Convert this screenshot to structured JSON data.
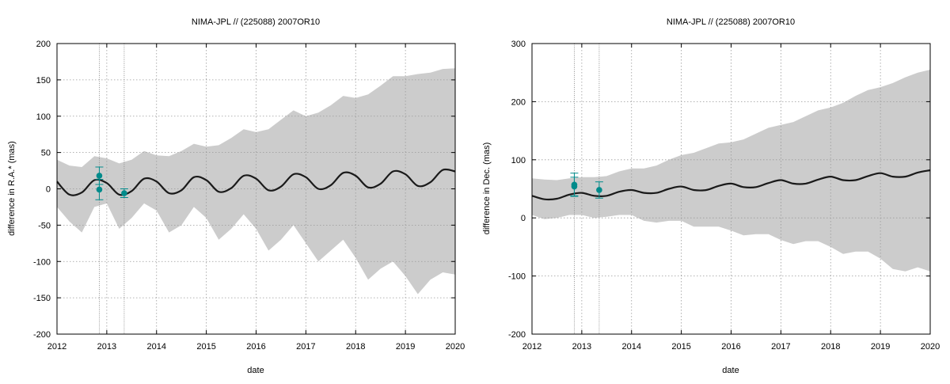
{
  "chart_data": [
    {
      "type": "line",
      "title": "NIMA-JPL // (225088) 2007OR10",
      "xlabel": "date",
      "ylabel": "difference in R.A.* (mas)",
      "xlim": [
        2012,
        2020
      ],
      "ylim": [
        -200,
        200
      ],
      "xticks": [
        "2012",
        "2013",
        "2014",
        "2015",
        "2016",
        "2017",
        "2018",
        "2019",
        "2020"
      ],
      "yticks": [
        "-200",
        "-150",
        "-100",
        "-50",
        "0",
        "50",
        "100",
        "150",
        "200"
      ],
      "grid": "dotted",
      "vertical_markers": [
        2012.85,
        2013.35
      ],
      "prediction_curve": {
        "description": "mean difference, oscillating with ~1 yr period",
        "x": [
          2012.0,
          2012.25,
          2012.5,
          2012.75,
          2013.0,
          2013.25,
          2013.5,
          2013.75,
          2014.0,
          2014.25,
          2014.5,
          2014.75,
          2015.0,
          2015.25,
          2015.5,
          2015.75,
          2016.0,
          2016.25,
          2016.5,
          2016.75,
          2017.0,
          2017.25,
          2017.5,
          2017.75,
          2018.0,
          2018.25,
          2018.5,
          2018.75,
          2019.0,
          2019.25,
          2019.5,
          2019.75,
          2020.0
        ],
        "y": [
          10,
          -8,
          -5,
          12,
          8,
          -8,
          -3,
          14,
          10,
          -6,
          -2,
          16,
          12,
          -4,
          1,
          18,
          14,
          -2,
          3,
          20,
          16,
          0,
          5,
          22,
          18,
          2,
          7,
          24,
          20,
          4,
          9,
          26,
          24
        ]
      },
      "uncertainty_band": {
        "x": [
          2012.0,
          2012.25,
          2012.5,
          2012.75,
          2013.0,
          2013.25,
          2013.5,
          2013.75,
          2014.0,
          2014.25,
          2014.5,
          2014.75,
          2015.0,
          2015.25,
          2015.5,
          2015.75,
          2016.0,
          2016.25,
          2016.5,
          2016.75,
          2017.0,
          2017.25,
          2017.5,
          2017.75,
          2018.0,
          2018.25,
          2018.5,
          2018.75,
          2019.0,
          2019.25,
          2019.5,
          2019.75,
          2020.0
        ],
        "upper": [
          40,
          32,
          30,
          45,
          42,
          35,
          40,
          52,
          46,
          45,
          52,
          62,
          58,
          60,
          70,
          82,
          78,
          82,
          95,
          108,
          100,
          105,
          115,
          128,
          125,
          130,
          142,
          155,
          155,
          158,
          160,
          165,
          166
        ],
        "lower": [
          -25,
          -45,
          -60,
          -25,
          -20,
          -55,
          -40,
          -20,
          -30,
          -60,
          -50,
          -25,
          -40,
          -70,
          -55,
          -35,
          -55,
          -85,
          -70,
          -50,
          -75,
          -100,
          -85,
          -70,
          -95,
          -125,
          -110,
          -100,
          -120,
          -145,
          -125,
          -115,
          -118
        ]
      },
      "observations": [
        {
          "x": 2012.85,
          "y": 18,
          "err": 12
        },
        {
          "x": 2012.85,
          "y": -1,
          "err": 14
        },
        {
          "x": 2013.35,
          "y": -6,
          "err": 6
        }
      ]
    },
    {
      "type": "line",
      "title": "NIMA-JPL // (225088) 2007OR10",
      "xlabel": "date",
      "ylabel": "difference in Dec. (mas)",
      "xlim": [
        2012,
        2020
      ],
      "ylim": [
        -200,
        300
      ],
      "xticks": [
        "2012",
        "2013",
        "2014",
        "2015",
        "2016",
        "2017",
        "2018",
        "2019",
        "2020"
      ],
      "yticks": [
        "-200",
        "-100",
        "0",
        "100",
        "200",
        "300"
      ],
      "grid": "dotted",
      "vertical_markers": [
        2012.85,
        2013.35
      ],
      "prediction_curve": {
        "description": "mean difference, slowly rising with ~1 yr oscillation",
        "x": [
          2012.0,
          2012.25,
          2012.5,
          2012.75,
          2013.0,
          2013.25,
          2013.5,
          2013.75,
          2014.0,
          2014.25,
          2014.5,
          2014.75,
          2015.0,
          2015.25,
          2015.5,
          2015.75,
          2016.0,
          2016.25,
          2016.5,
          2016.75,
          2017.0,
          2017.25,
          2017.5,
          2017.75,
          2018.0,
          2018.25,
          2018.5,
          2018.75,
          2019.0,
          2019.25,
          2019.5,
          2019.75,
          2020.0
        ],
        "y": [
          38,
          32,
          33,
          40,
          43,
          38,
          38,
          45,
          48,
          43,
          43,
          50,
          54,
          48,
          48,
          55,
          59,
          53,
          53,
          60,
          65,
          59,
          59,
          66,
          71,
          65,
          65,
          72,
          77,
          71,
          71,
          78,
          82
        ]
      },
      "uncertainty_band": {
        "x": [
          2012.0,
          2012.25,
          2012.5,
          2012.75,
          2013.0,
          2013.25,
          2013.5,
          2013.75,
          2014.0,
          2014.25,
          2014.5,
          2014.75,
          2015.0,
          2015.25,
          2015.5,
          2015.75,
          2016.0,
          2016.25,
          2016.5,
          2016.75,
          2017.0,
          2017.25,
          2017.5,
          2017.75,
          2018.0,
          2018.25,
          2018.5,
          2018.75,
          2019.0,
          2019.25,
          2019.5,
          2019.75,
          2020.0
        ],
        "upper": [
          68,
          66,
          65,
          68,
          70,
          70,
          72,
          80,
          85,
          85,
          90,
          100,
          108,
          112,
          120,
          128,
          130,
          135,
          145,
          155,
          160,
          165,
          175,
          185,
          190,
          198,
          210,
          220,
          225,
          232,
          242,
          250,
          255
        ],
        "lower": [
          5,
          -2,
          0,
          5,
          5,
          0,
          2,
          5,
          5,
          -5,
          -8,
          -5,
          -5,
          -15,
          -15,
          -15,
          -22,
          -30,
          -28,
          -28,
          -38,
          -45,
          -40,
          -40,
          -50,
          -62,
          -58,
          -58,
          -70,
          -88,
          -92,
          -85,
          -92
        ]
      },
      "observations": [
        {
          "x": 2012.85,
          "y": 57,
          "err": 20
        },
        {
          "x": 2012.85,
          "y": 54,
          "err": 16
        },
        {
          "x": 2013.35,
          "y": 48,
          "err": 14
        }
      ]
    }
  ],
  "colors": {
    "band": "#cccccc",
    "curve": "#1a1a1a",
    "observation": "#008b8b",
    "grid": "#9a9a9a",
    "marker_line": "#888888"
  }
}
